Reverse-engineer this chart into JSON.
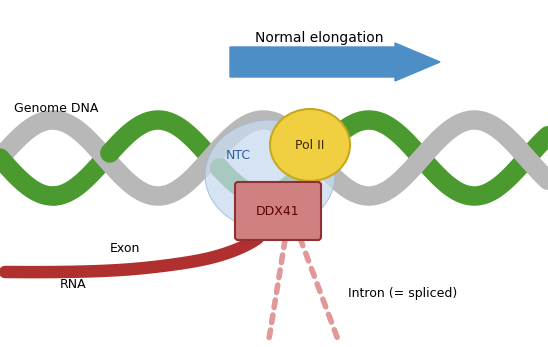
{
  "bg_color": "#ffffff",
  "arrow_label": "Normal elongation",
  "arrow_color": "#4d8ec7",
  "genome_dna_label": "Genome DNA",
  "dna_green_color": "#4a9a2f",
  "dna_gray_color": "#b8b8b8",
  "ntc_label": "NTC",
  "ntc_color": "#c8daf0",
  "polii_label": "Pol II",
  "polii_color": "#f0d040",
  "ddx41_label": "DDX41",
  "ddx41_color": "#d08080",
  "exon_label": "Exon",
  "rna_label": "RNA",
  "rna_color": "#b03030",
  "intron_label": "Intron (= spliced)",
  "intron_color": "#e09898"
}
